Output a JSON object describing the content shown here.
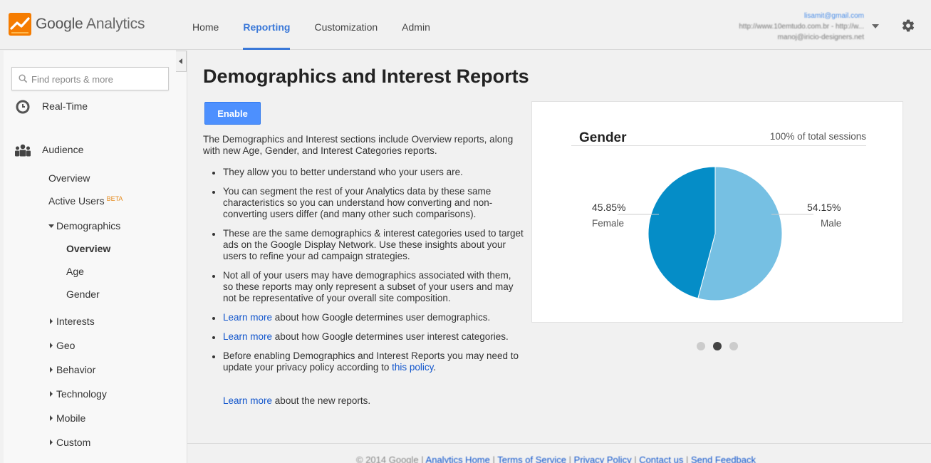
{
  "header": {
    "logo_google": "Google",
    "logo_analytics": "Analytics",
    "nav": [
      "Home",
      "Reporting",
      "Customization",
      "Admin"
    ],
    "active_nav": "Reporting",
    "account_email": "lisamit@gmail.com",
    "account_line1": "http://www.10emtudo.com.br - http://w...",
    "account_line2": "manoj@iricio-designers.net",
    "brand_color": "#3a78d8"
  },
  "sidebar": {
    "search_placeholder": "Find reports & more",
    "realtime": "Real-Time",
    "audience": "Audience",
    "overview": "Overview",
    "active_users": "Active Users",
    "beta": "BETA",
    "demographics": "Demographics",
    "demo_overview": "Overview",
    "demo_age": "Age",
    "demo_gender": "Gender",
    "interests": "Interests",
    "geo": "Geo",
    "behavior": "Behavior",
    "technology": "Technology",
    "mobile": "Mobile",
    "custom": "Custom"
  },
  "main": {
    "title": "Demographics and Interest Reports",
    "enable_label": "Enable",
    "intro": "The Demographics and Interest sections include Overview reports, along with new Age, Gender, and Interest Categories reports.",
    "b1": "They allow you to better understand who your users are.",
    "b2": "You can segment the rest of your Analytics data by these same characteristics so you can understand how converting and non-converting users differ (and many other such comparisons).",
    "b3": "These are the same demographics & interest categories used to target ads on the Google Display Network. Use these insights about your users to refine your ad campaign strategies.",
    "b4": "Not all of your users may have demographics associated with them, so these reports may only represent a subset of your users and may not be representative of your overall site composition.",
    "b5_link": "Learn more",
    "b5_text": " about how Google determines user demographics.",
    "b6_link": "Learn more",
    "b6_text": " about how Google determines user interest categories.",
    "b7_text": "Before enabling Demographics and Interest Reports you may need to update your privacy policy according to ",
    "b7_link": "this policy",
    "b7_end": ".",
    "learn_link": "Learn more",
    "learn_text": " about the new reports."
  },
  "card": {
    "title": "Gender",
    "subtitle": "100% of total sessions",
    "female_pct": "45.85%",
    "female_label": "Female",
    "male_pct": "54.15%",
    "male_label": "Male",
    "female_color": "#058dc7",
    "male_color": "#76c0e3",
    "active_slide": 2,
    "slide_count": 3
  },
  "chart_data": {
    "type": "pie",
    "title": "Gender",
    "subtitle": "100% of total sessions",
    "categories": [
      "Female",
      "Male"
    ],
    "values": [
      45.85,
      54.15
    ]
  },
  "footer": {
    "copyright": "© 2014 Google",
    "links": [
      "Analytics Home",
      "Terms of Service",
      "Privacy Policy",
      "Contact us",
      "Send Feedback"
    ]
  }
}
